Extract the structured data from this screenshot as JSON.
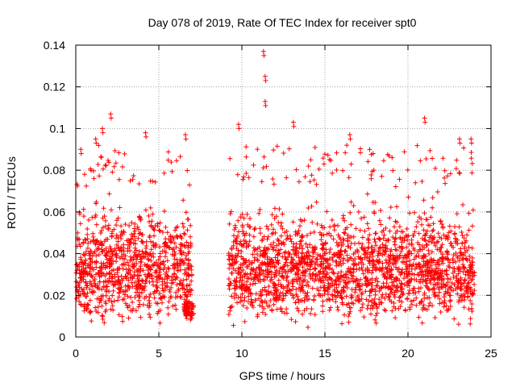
{
  "chart_data": {
    "type": "scatter",
    "title": "Day 078 of 2019, Rate Of TEC Index for receiver spt0",
    "xlabel": "GPS time / hours",
    "ylabel": "ROTI / TECUs",
    "xlim": [
      0,
      25
    ],
    "ylim": [
      0,
      0.14
    ],
    "xticks": [
      0,
      5,
      10,
      15,
      20,
      25
    ],
    "xtick_labels": [
      "0",
      "5",
      "10",
      "15",
      "20",
      "25"
    ],
    "yticks": [
      0,
      0.02,
      0.04,
      0.06,
      0.08,
      0.1,
      0.12,
      0.14
    ],
    "ytick_labels": [
      "0",
      "0.02",
      "0.04",
      "0.06",
      "0.08",
      "0.1",
      "0.12",
      "0.14"
    ],
    "grid": true,
    "marker": "+",
    "color": "#ff0000",
    "series": [
      {
        "name": "ROTI",
        "segments": [
          {
            "x_start": 0.0,
            "x_end": 7.0,
            "y_min": 0.005,
            "y_max": 0.072,
            "outliers": [
              [
                0.3,
                0.09
              ],
              [
                1.2,
                0.095
              ],
              [
                1.6,
                0.1
              ],
              [
                2.1,
                0.107
              ],
              [
                4.2,
                0.098
              ],
              [
                6.6,
                0.097
              ]
            ]
          },
          {
            "x_start": 6.5,
            "x_end": 7.1,
            "y_min": 0.008,
            "y_max": 0.02,
            "outliers": []
          },
          {
            "x_start": 9.2,
            "x_end": 24.0,
            "y_min": 0.004,
            "y_max": 0.072,
            "outliers": [
              [
                9.8,
                0.102
              ],
              [
                11.3,
                0.137
              ],
              [
                11.4,
                0.125
              ],
              [
                11.4,
                0.113
              ],
              [
                13.1,
                0.103
              ],
              [
                16.5,
                0.097
              ],
              [
                21.0,
                0.105
              ],
              [
                23.1,
                0.095
              ],
              [
                23.8,
                0.095
              ]
            ]
          }
        ],
        "x_range": [
          0.0,
          24.0
        ],
        "y_typical_range": [
          0.005,
          0.07
        ],
        "y_max_observed": 0.137
      }
    ]
  }
}
